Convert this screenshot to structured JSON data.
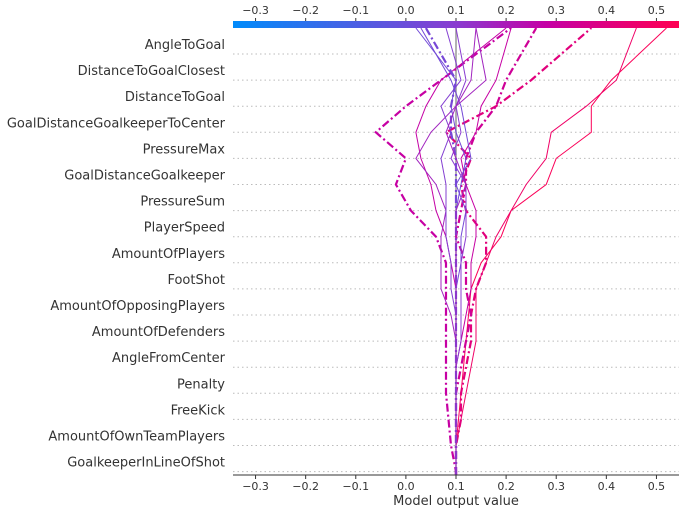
{
  "chart_data": {
    "type": "line",
    "subtype": "decision-plot",
    "xlabel": "Model output value",
    "xlim": [
      -0.345,
      0.545
    ],
    "xticks": [
      -0.3,
      -0.2,
      -0.1,
      0.0,
      0.1,
      0.2,
      0.3,
      0.4,
      0.5
    ],
    "xtick_labels": [
      "−0.3",
      "−0.2",
      "−0.1",
      "0.0",
      "0.1",
      "0.2",
      "0.3",
      "0.4",
      "0.5"
    ],
    "base_value": 0.1,
    "grid": "horizontal-dotted",
    "colorbar": {
      "position": "top",
      "colors": [
        "#008bfb",
        "#8a3cd0",
        "#c400a5",
        "#ff0052"
      ]
    },
    "features_top_to_bottom": [
      "AngleToGoal",
      "DistanceToGoalClosest",
      "DistanceToGoal",
      "GoalDistanceGoalkeeperToCenter",
      "PressureMax",
      "GoalDistanceGoalkeeper",
      "PressureSum",
      "PlayerSpeed",
      "AmountOfPlayers",
      "FootShot",
      "AmountOfOpposingPlayers",
      "AmountOfDefenders",
      "AngleFromCenter",
      "Penalty",
      "FreeKick",
      "AmountOfOwnTeamPlayers",
      "GoalkeeperInLineOfShot"
    ],
    "series_note_order": "values listed from base (bottom) to final output (top)",
    "series": [
      {
        "style": "solid",
        "values": [
          0.1,
          0.1,
          0.1,
          0.105,
          0.11,
          0.115,
          0.12,
          0.125,
          0.13,
          0.15,
          0.19,
          0.21,
          0.28,
          0.3,
          0.37,
          0.37,
          0.41,
          0.52
        ]
      },
      {
        "style": "solid",
        "values": [
          0.1,
          0.1,
          0.1,
          0.11,
          0.12,
          0.13,
          0.14,
          0.14,
          0.14,
          0.16,
          0.18,
          0.21,
          0.24,
          0.28,
          0.29,
          0.36,
          0.42,
          0.46
        ]
      },
      {
        "style": "dashdot",
        "values": [
          0.1,
          0.1,
          0.1,
          0.11,
          0.11,
          0.12,
          0.13,
          0.13,
          0.14,
          0.16,
          0.16,
          0.12,
          0.11,
          0.13,
          0.08,
          0.18,
          0.25,
          0.37
        ]
      },
      {
        "style": "dashdot",
        "values": [
          0.1,
          0.1,
          0.09,
          0.085,
          0.08,
          0.08,
          0.08,
          0.08,
          0.08,
          0.08,
          0.06,
          0.01,
          -0.02,
          0.0,
          -0.06,
          0.0,
          0.07,
          0.21
        ]
      },
      {
        "style": "dashdot",
        "values": [
          0.1,
          0.1,
          0.1,
          0.1,
          0.1,
          0.11,
          0.12,
          0.13,
          0.12,
          0.12,
          0.1,
          0.11,
          0.12,
          0.12,
          0.14,
          0.18,
          0.2,
          0.26
        ]
      },
      {
        "style": "solid",
        "values": [
          0.1,
          0.1,
          0.1,
          0.1,
          0.1,
          0.1,
          0.1,
          0.1,
          0.1,
          0.09,
          0.08,
          0.06,
          0.05,
          0.03,
          0.02,
          0.04,
          0.07,
          0.2
        ]
      },
      {
        "style": "solid",
        "values": [
          0.1,
          0.1,
          0.1,
          0.1,
          0.1,
          0.1,
          0.1,
          0.09,
          0.07,
          0.07,
          0.07,
          0.08,
          0.06,
          0.02,
          0.05,
          0.1,
          0.16,
          0.14
        ]
      },
      {
        "style": "solid",
        "values": [
          0.1,
          0.1,
          0.1,
          0.1,
          0.1,
          0.1,
          0.11,
          0.12,
          0.13,
          0.13,
          0.14,
          0.14,
          0.12,
          0.11,
          0.14,
          0.15,
          0.18,
          0.21
        ]
      },
      {
        "style": "solid",
        "values": [
          0.1,
          0.1,
          0.1,
          0.1,
          0.1,
          0.1,
          0.1,
          0.1,
          0.1,
          0.11,
          0.11,
          0.12,
          0.1,
          0.13,
          0.12,
          0.11,
          0.09,
          0.03
        ]
      },
      {
        "style": "solid",
        "values": [
          0.1,
          0.1,
          0.1,
          0.1,
          0.1,
          0.1,
          0.1,
          0.1,
          0.1,
          0.1,
          0.1,
          0.1,
          0.11,
          0.12,
          0.1,
          0.09,
          0.1,
          0.02
        ]
      },
      {
        "style": "solid",
        "values": [
          0.1,
          0.1,
          0.1,
          0.1,
          0.1,
          0.1,
          0.1,
          0.1,
          0.09,
          0.09,
          0.08,
          0.08,
          0.08,
          0.07,
          0.09,
          0.07,
          0.11,
          0.08
        ]
      },
      {
        "style": "dashdot",
        "values": [
          0.1,
          0.1,
          0.1,
          0.1,
          0.1,
          0.1,
          0.1,
          0.1,
          0.1,
          0.1,
          0.1,
          0.1,
          0.1,
          0.1,
          0.09,
          0.09,
          0.1,
          0.04
        ]
      },
      {
        "style": "solid",
        "values": [
          0.1,
          0.1,
          0.1,
          0.1,
          0.1,
          0.1,
          0.11,
          0.11,
          0.11,
          0.11,
          0.12,
          0.12,
          0.12,
          0.09,
          0.11,
          0.1,
          0.12,
          0.1
        ]
      },
      {
        "style": "solid",
        "values": [
          0.1,
          0.1,
          0.1,
          0.1,
          0.1,
          0.1,
          0.1,
          0.1,
          0.1,
          0.1,
          0.1,
          0.1,
          0.12,
          0.1,
          0.08,
          0.1,
          0.13,
          0.14
        ]
      }
    ]
  }
}
